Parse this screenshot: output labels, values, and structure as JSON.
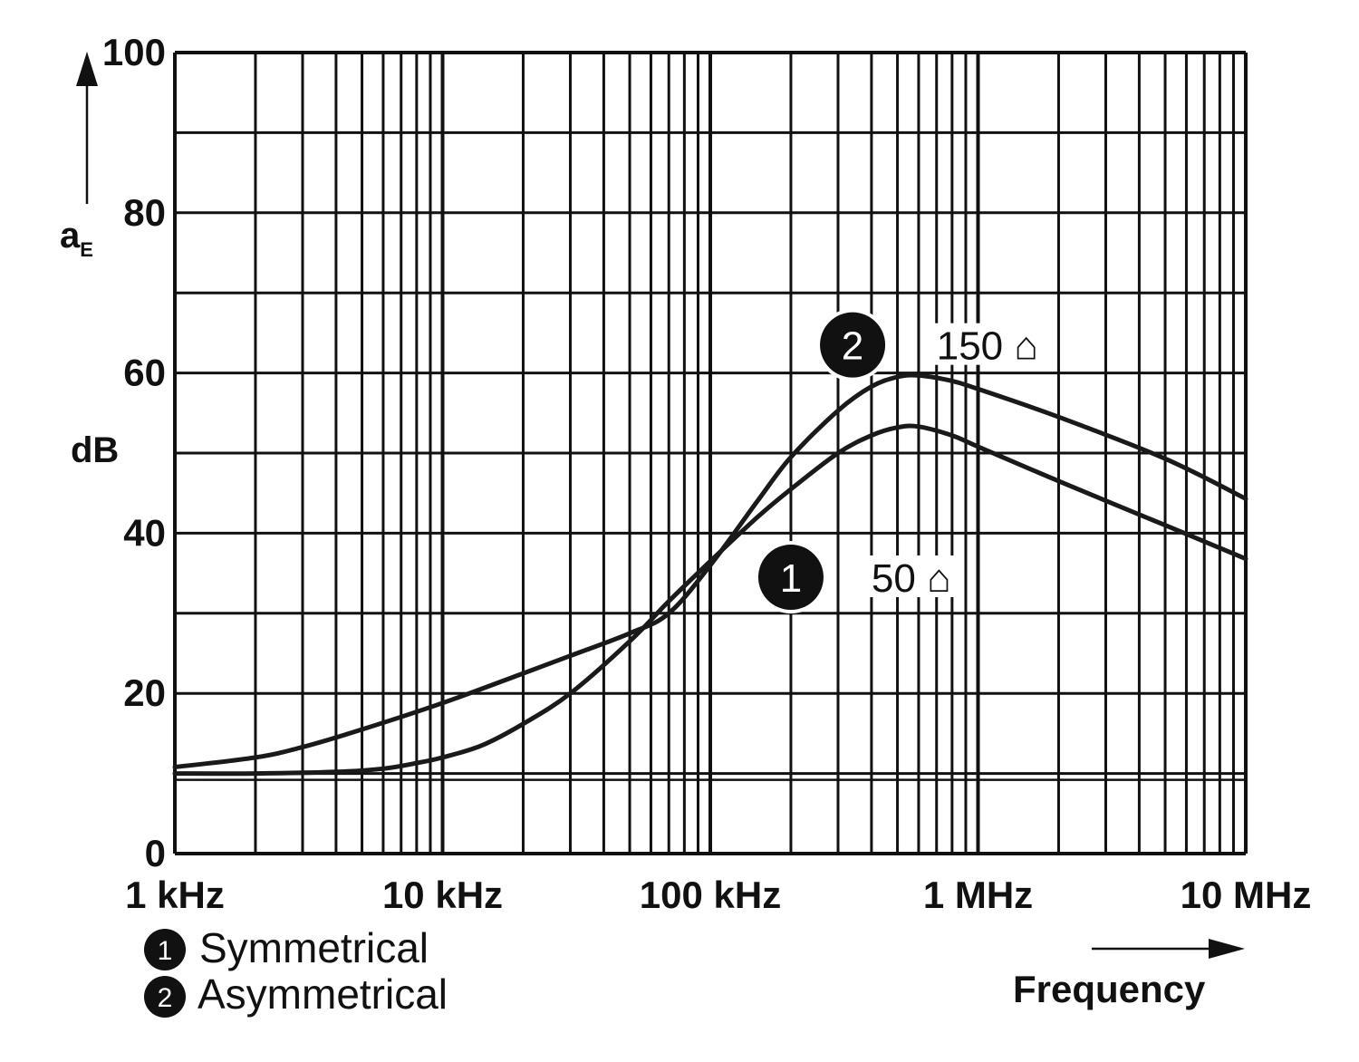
{
  "chart_data": {
    "type": "line",
    "title": "",
    "ylabel_main": "a",
    "ylabel_sub": "E",
    "yunit": "dB",
    "xlabel": "Frequency",
    "x_scale": "log",
    "xlim_hz": [
      1000,
      10000000
    ],
    "ylim": [
      0,
      100
    ],
    "x_ticks": [
      {
        "value": 1000,
        "label": "1 kHz"
      },
      {
        "value": 10000,
        "label": "10 kHz"
      },
      {
        "value": 100000,
        "label": "100 kHz"
      },
      {
        "value": 1000000,
        "label": "1 MHz"
      },
      {
        "value": 10000000,
        "label": "10 MHz"
      }
    ],
    "y_ticks": [
      {
        "value": 0,
        "label": "0"
      },
      {
        "value": 20,
        "label": "20"
      },
      {
        "value": 40,
        "label": "40"
      },
      {
        "value": 60,
        "label": "60"
      },
      {
        "value": 80,
        "label": "80"
      },
      {
        "value": 100,
        "label": "100"
      }
    ],
    "y_minor_grid": [
      10,
      30,
      50,
      70,
      90
    ],
    "series": [
      {
        "id": "1",
        "name": "Symmetrical",
        "impedance_label": "50 ⌂",
        "points": [
          [
            1000,
            10.0
          ],
          [
            2000,
            10.0
          ],
          [
            4000,
            10.2
          ],
          [
            6000,
            10.6
          ],
          [
            8000,
            11.3
          ],
          [
            10000,
            12.0
          ],
          [
            14000,
            13.5
          ],
          [
            20000,
            16.2
          ],
          [
            30000,
            20.0
          ],
          [
            50000,
            26.5
          ],
          [
            70000,
            31.5
          ],
          [
            100000,
            36.5
          ],
          [
            150000,
            42.0
          ],
          [
            200000,
            45.5
          ],
          [
            300000,
            50.0
          ],
          [
            400000,
            52.2
          ],
          [
            500000,
            53.2
          ],
          [
            600000,
            53.3
          ],
          [
            800000,
            52.2
          ],
          [
            1000000,
            50.8
          ],
          [
            2000000,
            46.5
          ],
          [
            5000000,
            41.0
          ],
          [
            10000000,
            36.8
          ]
        ]
      },
      {
        "id": "2",
        "name": "Asymmetrical",
        "impedance_label": "150 ⌂",
        "points": [
          [
            1000,
            10.8
          ],
          [
            2000,
            12.0
          ],
          [
            3000,
            13.3
          ],
          [
            5000,
            15.5
          ],
          [
            10000,
            18.8
          ],
          [
            20000,
            22.5
          ],
          [
            30000,
            24.7
          ],
          [
            50000,
            27.5
          ],
          [
            70000,
            30.0
          ],
          [
            100000,
            36.0
          ],
          [
            150000,
            44.0
          ],
          [
            200000,
            49.5
          ],
          [
            300000,
            55.3
          ],
          [
            400000,
            58.3
          ],
          [
            500000,
            59.5
          ],
          [
            600000,
            59.7
          ],
          [
            800000,
            59.0
          ],
          [
            1000000,
            58.0
          ],
          [
            2000000,
            54.5
          ],
          [
            5000000,
            49.3
          ],
          [
            10000000,
            44.3
          ]
        ]
      }
    ],
    "annotations": [
      {
        "marker": "2",
        "at_hz": 340000,
        "at_db": 63.5,
        "label": "150 ⌂",
        "label_at_hz": 700000
      },
      {
        "marker": "1",
        "at_hz": 200000,
        "at_db": 34.5,
        "label": "50 ⌂",
        "label_at_hz": 400000
      }
    ],
    "legend": [
      {
        "marker": "1",
        "label": "Symmetrical"
      },
      {
        "marker": "2",
        "label": "Asymmetrical"
      }
    ],
    "legend_position": "bottom-left"
  }
}
